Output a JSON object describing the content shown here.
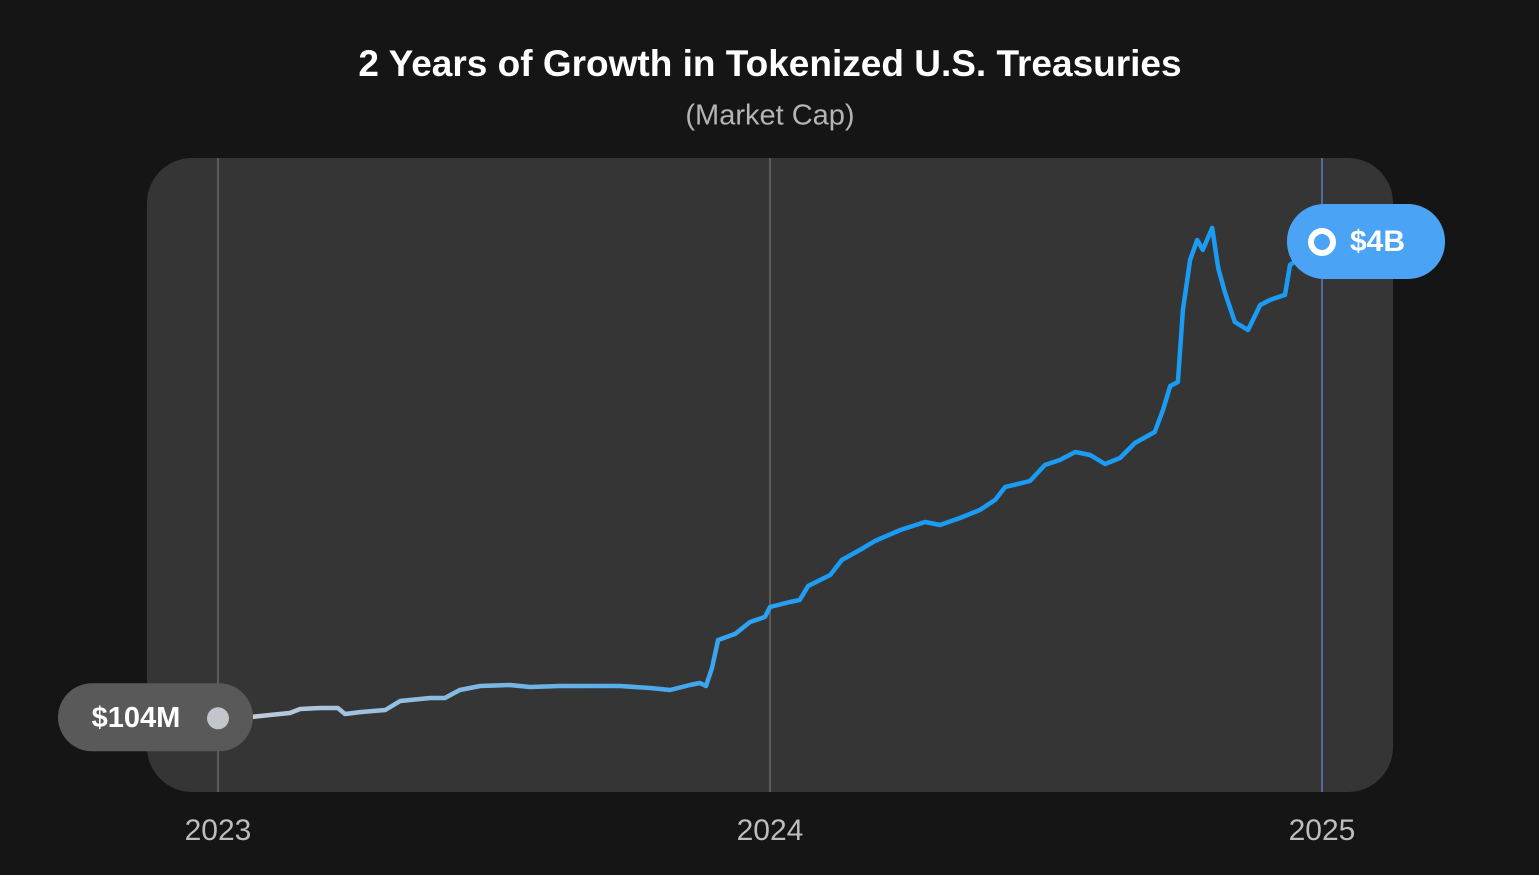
{
  "chart_data": {
    "type": "line",
    "title": "2 Years of Growth in Tokenized U.S. Treasuries",
    "subtitle": "(Market Cap)",
    "x": [
      2023.0,
      2023.058,
      2023.094,
      2023.13,
      2023.149,
      2023.185,
      2023.217,
      2023.23,
      2023.257,
      2023.303,
      2023.33,
      2023.384,
      2023.411,
      2023.438,
      2023.475,
      2023.529,
      2023.565,
      2023.62,
      2023.692,
      2023.728,
      2023.783,
      2023.819,
      2023.855,
      2023.873,
      2023.884,
      2023.895,
      2023.906,
      2023.937,
      2023.964,
      2023.991,
      2024.0,
      2024.036,
      2024.054,
      2024.069,
      2024.109,
      2024.13,
      2024.163,
      2024.19,
      2024.236,
      2024.281,
      2024.308,
      2024.344,
      2024.38,
      2024.408,
      2024.426,
      2024.471,
      2024.498,
      2024.525,
      2024.553,
      2024.58,
      2024.607,
      2024.634,
      2024.661,
      2024.697,
      2024.712,
      2024.725,
      2024.739,
      2024.748,
      2024.761,
      2024.774,
      2024.784,
      2024.801,
      2024.812,
      2024.824,
      2024.842,
      2024.866,
      2024.888,
      2024.906,
      2024.933,
      2024.942,
      2025.0
    ],
    "values": [
      104,
      114,
      131,
      147,
      180,
      188,
      188,
      139,
      155,
      172,
      245,
      270,
      270,
      335,
      368,
      376,
      360,
      368,
      368,
      368,
      352,
      335,
      376,
      393,
      368,
      515,
      744,
      794,
      892,
      933,
      1014,
      1055,
      1072,
      1186,
      1276,
      1399,
      1481,
      1554,
      1644,
      1710,
      1685,
      1742,
      1808,
      1890,
      1996,
      2045,
      2176,
      2217,
      2282,
      2258,
      2184,
      2233,
      2356,
      2446,
      2626,
      2822,
      2855,
      3444,
      3853,
      4016,
      3935,
      4115,
      3787,
      3591,
      3346,
      3280,
      3485,
      3526,
      3567,
      3812,
      4000
    ],
    "value_labels": [
      "$104M",
      null,
      null,
      null,
      null,
      null,
      null,
      null,
      null,
      null,
      null,
      null,
      null,
      null,
      null,
      null,
      null,
      null,
      null,
      null,
      null,
      null,
      null,
      null,
      null,
      null,
      null,
      null,
      null,
      null,
      null,
      null,
      null,
      null,
      null,
      null,
      null,
      null,
      null,
      null,
      null,
      null,
      null,
      null,
      null,
      null,
      null,
      null,
      null,
      null,
      null,
      null,
      null,
      null,
      null,
      null,
      null,
      null,
      null,
      null,
      null,
      null,
      null,
      null,
      null,
      null,
      null,
      null,
      null,
      null,
      "$4B"
    ],
    "color": "#1a9cf5",
    "gradient_start_color": "#c8ced8",
    "xlim": [
      2023,
      2025
    ],
    "xticks": [
      2023,
      2024,
      2025
    ],
    "ylim": [
      0,
      4000
    ],
    "grid": true
  }
}
